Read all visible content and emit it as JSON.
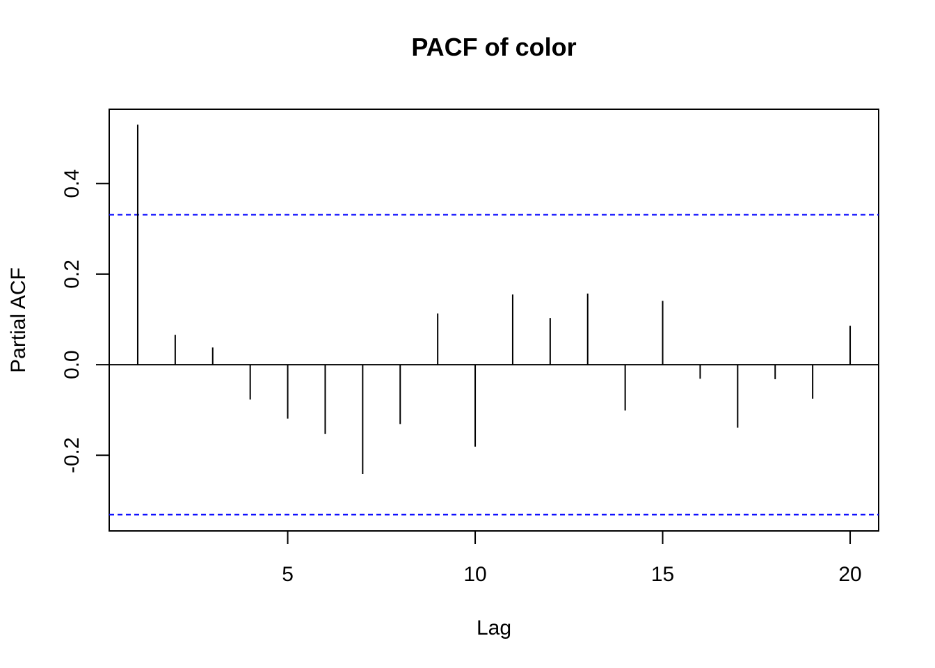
{
  "chart_data": {
    "type": "bar",
    "title": "PACF of color",
    "xlabel": "Lag",
    "ylabel": "Partial ACF",
    "x": [
      1,
      2,
      3,
      4,
      5,
      6,
      7,
      8,
      9,
      10,
      11,
      12,
      13,
      14,
      15,
      16,
      17,
      18,
      19,
      20
    ],
    "values": [
      0.53,
      0.066,
      0.038,
      -0.077,
      -0.119,
      -0.153,
      -0.241,
      -0.131,
      0.113,
      -0.181,
      0.155,
      0.103,
      0.157,
      -0.101,
      0.141,
      -0.031,
      -0.139,
      -0.032,
      -0.075,
      0.086
    ],
    "xlim": [
      0.24,
      20.76
    ],
    "ylim": [
      -0.367,
      0.564
    ],
    "x_ticks": [
      5,
      10,
      15,
      20
    ],
    "x_tick_labels": [
      "5",
      "10",
      "15",
      "20"
    ],
    "y_ticks": [
      -0.2,
      0.0,
      0.2,
      0.4
    ],
    "y_tick_labels": [
      "-0.2",
      "0.0",
      "0.2",
      "0.4"
    ],
    "confidence_bounds": [
      0.331,
      -0.331
    ],
    "confidence_color": "#0000FF",
    "bar_color": "#000000",
    "grid": false,
    "legend": "none"
  }
}
